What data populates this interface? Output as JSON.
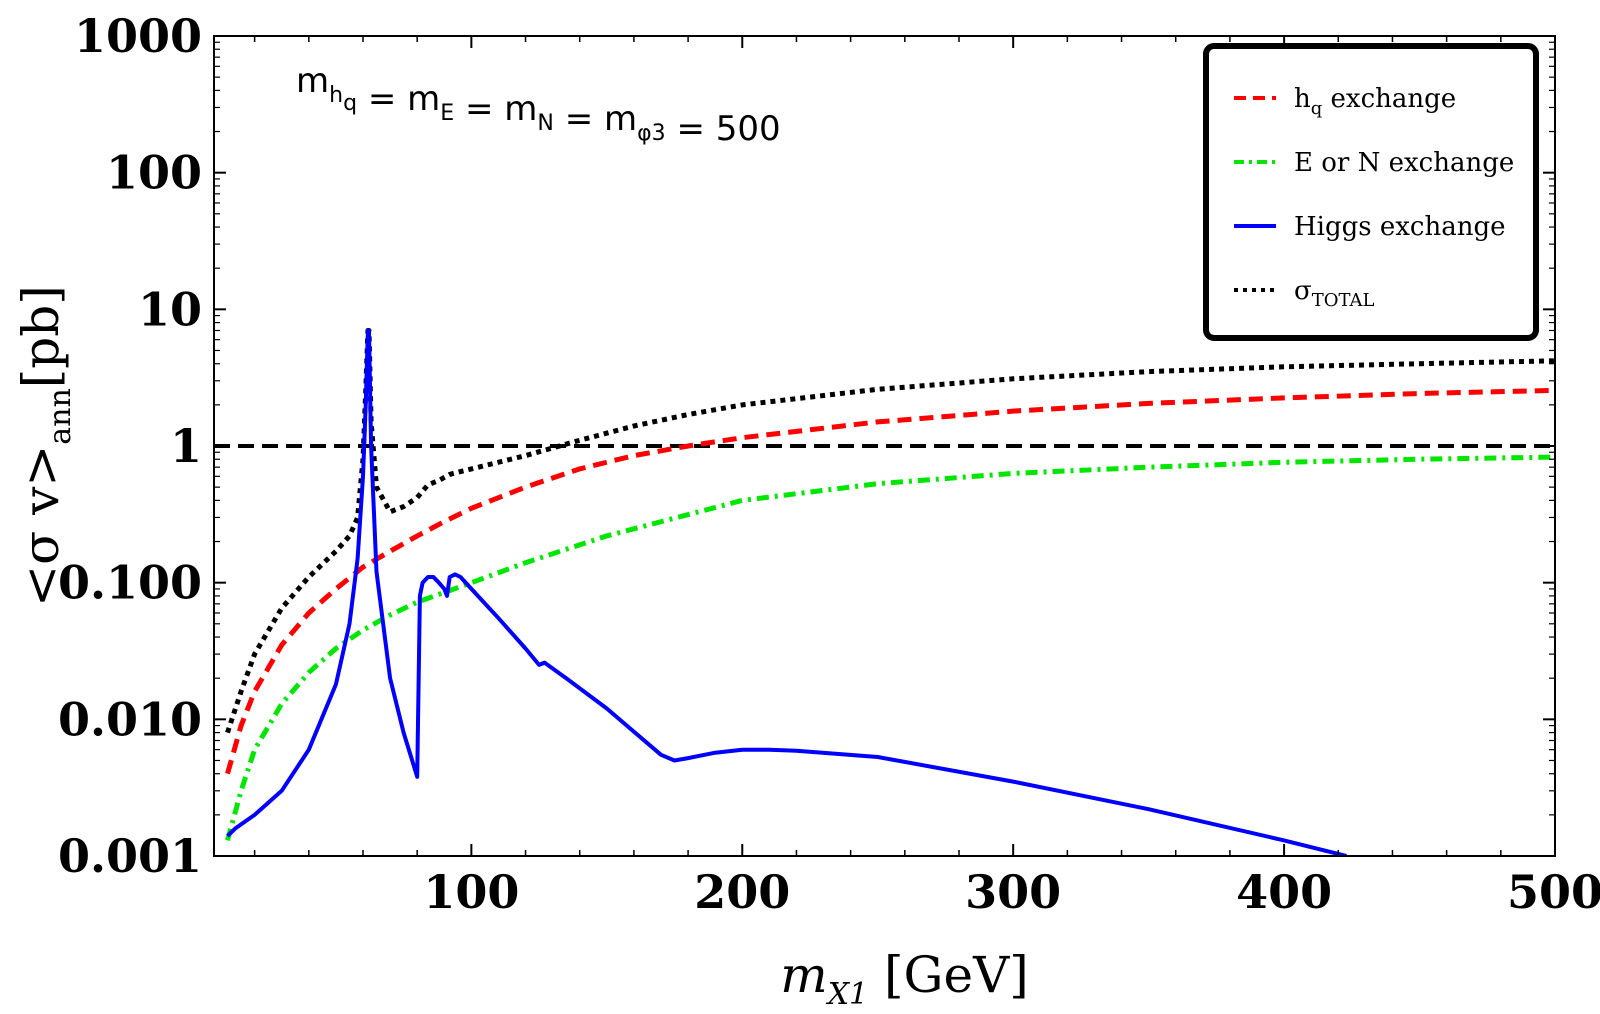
{
  "chart_data": {
    "type": "line",
    "title": "",
    "annotation": {
      "text_parts": [
        {
          "t": "m",
          "sub": "h",
          "subsub": "q"
        },
        {
          "t": " = m",
          "sub": "E"
        },
        {
          "t": " = m",
          "sub": "N"
        },
        {
          "t": " = m",
          "sub": "φ3"
        },
        {
          "t": " = 500"
        }
      ],
      "full_text": "m_hq = m_E = m_N = m_φ3 = 500"
    },
    "xlabel": "m",
    "xlabel_sub": "X1",
    "xlabel_unit": " [GeV]",
    "ylabel": "<σ v>",
    "ylabel_sub": "ann",
    "ylabel_unit": "[pb]",
    "xlim": [
      5,
      500
    ],
    "ylim": [
      0.001,
      1000
    ],
    "yscale": "log",
    "x_ticks": [
      100,
      200,
      300,
      400,
      500
    ],
    "x_tick_labels": [
      "100",
      "200",
      "300",
      "400",
      "500"
    ],
    "y_ticks": [
      0.001,
      0.01,
      0.1,
      1,
      10,
      100,
      1000
    ],
    "y_tick_labels": [
      "0.001",
      "0.010",
      "0.100",
      "1",
      "10",
      "100",
      "1000"
    ],
    "reference_line": {
      "y": 1,
      "style": "dashed",
      "color": "#000000"
    },
    "legend": {
      "placement": "top-right",
      "entries": [
        {
          "label": "h",
          "label_sub": "q",
          "label_rest": " exchange",
          "color": "#ff0000",
          "style": "dashed"
        },
        {
          "label": "E or N exchange",
          "label_sub": "",
          "label_rest": "",
          "color": "#00e600",
          "style": "dashdot"
        },
        {
          "label": "Higgs exchange",
          "label_sub": "",
          "label_rest": "",
          "color": "#0000ff",
          "style": "solid"
        },
        {
          "label": "σ",
          "label_sub": "TOTAL",
          "label_rest": "",
          "color": "#000000",
          "style": "dotted"
        }
      ]
    },
    "series": [
      {
        "name": "hq exchange",
        "color": "#ff0000",
        "style": "dashed",
        "x": [
          10,
          15,
          20,
          30,
          40,
          50,
          60,
          70,
          80,
          90,
          100,
          120,
          140,
          160,
          180,
          200,
          250,
          300,
          350,
          400,
          450,
          500
        ],
        "y": [
          0.004,
          0.009,
          0.016,
          0.035,
          0.06,
          0.09,
          0.13,
          0.17,
          0.22,
          0.28,
          0.35,
          0.5,
          0.68,
          0.85,
          1.0,
          1.15,
          1.5,
          1.8,
          2.05,
          2.25,
          2.42,
          2.55
        ]
      },
      {
        "name": "E or N exchange",
        "color": "#00e600",
        "style": "dashdot",
        "x": [
          10,
          15,
          20,
          30,
          40,
          50,
          60,
          70,
          80,
          100,
          120,
          150,
          200,
          250,
          300,
          350,
          400,
          450,
          500
        ],
        "y": [
          0.0013,
          0.003,
          0.006,
          0.013,
          0.022,
          0.033,
          0.045,
          0.058,
          0.072,
          0.1,
          0.14,
          0.22,
          0.4,
          0.53,
          0.63,
          0.7,
          0.76,
          0.8,
          0.83
        ]
      },
      {
        "name": "Higgs exchange",
        "color": "#0000ff",
        "style": "solid",
        "x": [
          10,
          13,
          20,
          30,
          40,
          50,
          55,
          58,
          60,
          61,
          61.8,
          62.2,
          63,
          65,
          70,
          75,
          80,
          81,
          82,
          84,
          86,
          88,
          90,
          91,
          92,
          94,
          96,
          100,
          110,
          120,
          125,
          127,
          135,
          150,
          170,
          175,
          180,
          190,
          200,
          210,
          220,
          250,
          300,
          350,
          400,
          423
        ],
        "y": [
          0.0014,
          0.0016,
          0.002,
          0.003,
          0.006,
          0.018,
          0.05,
          0.15,
          0.6,
          2.0,
          7.0,
          7.0,
          1.0,
          0.12,
          0.02,
          0.008,
          0.0038,
          0.08,
          0.1,
          0.11,
          0.11,
          0.1,
          0.09,
          0.08,
          0.11,
          0.115,
          0.11,
          0.09,
          0.055,
          0.033,
          0.025,
          0.026,
          0.02,
          0.012,
          0.0055,
          0.005,
          0.0052,
          0.0057,
          0.006,
          0.006,
          0.0059,
          0.0053,
          0.0035,
          0.0022,
          0.0013,
          0.001
        ]
      },
      {
        "name": "σTOTAL",
        "color": "#000000",
        "style": "dotted",
        "x": [
          10,
          15,
          20,
          30,
          40,
          50,
          55,
          58,
          60,
          61,
          61.8,
          62.2,
          63,
          65,
          70,
          75,
          80,
          84,
          88,
          92,
          96,
          100,
          120,
          140,
          160,
          180,
          200,
          250,
          300,
          350,
          400,
          450,
          500
        ],
        "y": [
          0.008,
          0.016,
          0.03,
          0.065,
          0.11,
          0.17,
          0.22,
          0.3,
          0.8,
          2.5,
          7.0,
          7.0,
          1.5,
          0.5,
          0.33,
          0.36,
          0.42,
          0.52,
          0.56,
          0.62,
          0.65,
          0.68,
          0.85,
          1.1,
          1.4,
          1.7,
          2.0,
          2.6,
          3.1,
          3.5,
          3.8,
          4.0,
          4.2
        ]
      }
    ]
  }
}
